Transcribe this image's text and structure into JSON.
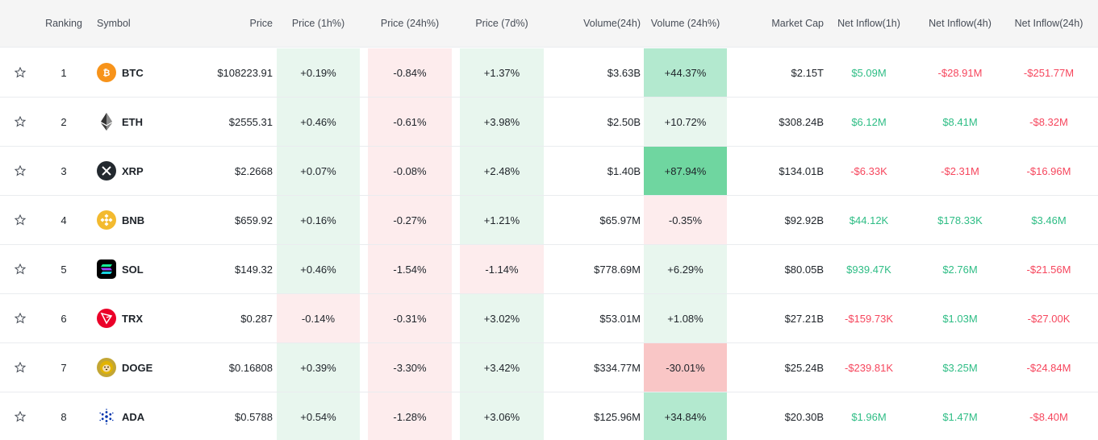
{
  "columns": {
    "ranking": "Ranking",
    "symbol": "Symbol",
    "price": "Price",
    "price_1h": "Price (1h%)",
    "price_24h": "Price (24h%)",
    "price_7d": "Price (7d%)",
    "volume_24h": "Volume(24h)",
    "volume_24h_pct": "Volume (24h%)",
    "market_cap": "Market Cap",
    "net_inflow_1h": "Net Inflow(1h)",
    "net_inflow_4h": "Net Inflow(4h)",
    "net_inflow_24h": "Net Inflow(24h)"
  },
  "rows": [
    {
      "rank": "1",
      "symbol": "BTC",
      "icon": "btc-icon",
      "price": "$108223.91",
      "p1h": "+0.19%",
      "p24h": "-0.84%",
      "p7d": "+1.37%",
      "vol": "$3.63B",
      "volpct": "+44.37%",
      "mcap": "$2.15T",
      "in1h": "$5.09M",
      "in4h": "-$28.91M",
      "in24h": "-$251.77M"
    },
    {
      "rank": "2",
      "symbol": "ETH",
      "icon": "eth-icon",
      "price": "$2555.31",
      "p1h": "+0.46%",
      "p24h": "-0.61%",
      "p7d": "+3.98%",
      "vol": "$2.50B",
      "volpct": "+10.72%",
      "mcap": "$308.24B",
      "in1h": "$6.12M",
      "in4h": "$8.41M",
      "in24h": "-$8.32M"
    },
    {
      "rank": "3",
      "symbol": "XRP",
      "icon": "xrp-icon",
      "price": "$2.2668",
      "p1h": "+0.07%",
      "p24h": "-0.08%",
      "p7d": "+2.48%",
      "vol": "$1.40B",
      "volpct": "+87.94%",
      "mcap": "$134.01B",
      "in1h": "-$6.33K",
      "in4h": "-$2.31M",
      "in24h": "-$16.96M"
    },
    {
      "rank": "4",
      "symbol": "BNB",
      "icon": "bnb-icon",
      "price": "$659.92",
      "p1h": "+0.16%",
      "p24h": "-0.27%",
      "p7d": "+1.21%",
      "vol": "$65.97M",
      "volpct": "-0.35%",
      "mcap": "$92.92B",
      "in1h": "$44.12K",
      "in4h": "$178.33K",
      "in24h": "$3.46M"
    },
    {
      "rank": "5",
      "symbol": "SOL",
      "icon": "sol-icon",
      "price": "$149.32",
      "p1h": "+0.46%",
      "p24h": "-1.54%",
      "p7d": "-1.14%",
      "vol": "$778.69M",
      "volpct": "+6.29%",
      "mcap": "$80.05B",
      "in1h": "$939.47K",
      "in4h": "$2.76M",
      "in24h": "-$21.56M"
    },
    {
      "rank": "6",
      "symbol": "TRX",
      "icon": "trx-icon",
      "price": "$0.287",
      "p1h": "-0.14%",
      "p24h": "-0.31%",
      "p7d": "+3.02%",
      "vol": "$53.01M",
      "volpct": "+1.08%",
      "mcap": "$27.21B",
      "in1h": "-$159.73K",
      "in4h": "$1.03M",
      "in24h": "-$27.00K"
    },
    {
      "rank": "7",
      "symbol": "DOGE",
      "icon": "doge-icon",
      "price": "$0.16808",
      "p1h": "+0.39%",
      "p24h": "-3.30%",
      "p7d": "+3.42%",
      "vol": "$334.77M",
      "volpct": "-30.01%",
      "mcap": "$25.24B",
      "in1h": "-$239.81K",
      "in4h": "$3.25M",
      "in24h": "-$24.84M"
    },
    {
      "rank": "8",
      "symbol": "ADA",
      "icon": "ada-icon",
      "price": "$0.5788",
      "p1h": "+0.54%",
      "p24h": "-1.28%",
      "p7d": "+3.06%",
      "vol": "$125.96M",
      "volpct": "+34.84%",
      "mcap": "$20.30B",
      "in1h": "$1.96M",
      "in4h": "$1.47M",
      "in24h": "-$8.40M"
    }
  ],
  "colors": {
    "positive_text": "#2ebd85",
    "negative_text": "#f6465d",
    "light_green": "#e8f6ee",
    "light_red": "#fdeced",
    "medium_green": "#b3e9cf",
    "strong_green": "#6fd6a0",
    "medium_red": "#f9c6c6"
  }
}
